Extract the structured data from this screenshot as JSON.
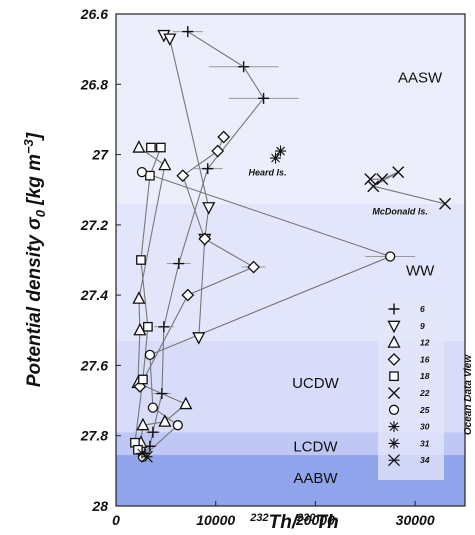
{
  "chart_data": {
    "type": "scatter",
    "xlabel": "232Th/230Th",
    "ylabel": "Potential density σ0 [kg m−3]",
    "xlim": [
      0,
      35000
    ],
    "ylim": [
      26.6,
      28.0
    ],
    "y_inverted": true,
    "x_ticks": [
      "0",
      "10000",
      "20000",
      "30000"
    ],
    "x_tick_values": [
      0,
      10000,
      20000,
      30000
    ],
    "y_ticks": [
      "26.6",
      "26.8",
      "27",
      "27.2",
      "27.4",
      "27.6",
      "27.8",
      "28"
    ],
    "y_tick_values": [
      26.6,
      26.8,
      27.0,
      27.2,
      27.4,
      27.6,
      27.8,
      28.0
    ],
    "water_masses": [
      {
        "name": "AASW",
        "from": 26.6,
        "to": 27.14,
        "color": "#eceefb",
        "label_x": 30500,
        "label_y": 26.78
      },
      {
        "name": "WW",
        "from": 27.14,
        "to": 27.53,
        "color": "#e3e6fb",
        "label_x": 30500,
        "label_y": 27.33
      },
      {
        "name": "UCDW",
        "from": 27.53,
        "to": 27.79,
        "color": "#d8dcf9",
        "label_x": 20000,
        "label_y": 27.65
      },
      {
        "name": "LCDW",
        "from": 27.79,
        "to": 27.855,
        "color": "#bfc8f5",
        "label_x": 20000,
        "label_y": 27.83
      },
      {
        "name": "AABW",
        "from": 27.855,
        "to": 28.0,
        "color": "#8fa4ea",
        "label_x": 20000,
        "label_y": 27.92
      }
    ],
    "annotations": [
      {
        "text": "Heard Is.",
        "x": 15200,
        "y": 27.06
      },
      {
        "text": "McDonald Is.",
        "x": 28500,
        "y": 27.17
      }
    ],
    "legend_position": "bottom-right",
    "series": [
      {
        "name": "6",
        "marker": "plus",
        "points": [
          [
            7200,
            26.65,
            1500
          ],
          [
            12800,
            26.75,
            3500
          ],
          [
            14800,
            26.84,
            3500
          ],
          [
            9200,
            27.04,
            1500
          ],
          [
            6300,
            27.31,
            1200
          ],
          [
            4800,
            27.49,
            1000
          ],
          [
            4600,
            27.68,
            900
          ],
          [
            3700,
            27.79,
            700
          ],
          [
            3400,
            27.83,
            700
          ],
          [
            2900,
            27.85,
            600
          ]
        ]
      },
      {
        "name": "9",
        "marker": "triangle-down",
        "points": [
          [
            4800,
            26.66,
            0
          ],
          [
            5400,
            26.67,
            0
          ],
          [
            9300,
            27.15,
            0
          ],
          [
            8900,
            27.24,
            0
          ],
          [
            8300,
            27.52,
            0
          ]
        ]
      },
      {
        "name": "12",
        "marker": "triangle-up",
        "points": [
          [
            2300,
            26.98,
            0
          ],
          [
            4900,
            27.03,
            0
          ],
          [
            2300,
            27.41,
            0
          ],
          [
            2400,
            27.5,
            0
          ],
          [
            2200,
            27.65,
            0
          ],
          [
            7000,
            27.71,
            0
          ],
          [
            4900,
            27.76,
            0
          ],
          [
            2700,
            27.77,
            0
          ],
          [
            2500,
            27.82,
            0
          ]
        ]
      },
      {
        "name": "16",
        "marker": "diamond",
        "points": [
          [
            10800,
            26.95,
            0
          ],
          [
            10200,
            26.99,
            0
          ],
          [
            6700,
            27.06,
            0
          ],
          [
            8900,
            27.24,
            0
          ],
          [
            13800,
            27.32,
            1200
          ],
          [
            7200,
            27.4,
            0
          ],
          [
            2400,
            27.66,
            0
          ]
        ]
      },
      {
        "name": "18",
        "marker": "square",
        "points": [
          [
            3500,
            26.98,
            0
          ],
          [
            4500,
            26.98,
            0
          ],
          [
            3400,
            27.06,
            0
          ],
          [
            2500,
            27.3,
            0
          ],
          [
            3200,
            27.49,
            0
          ],
          [
            2700,
            27.64,
            0
          ],
          [
            1900,
            27.82,
            0
          ],
          [
            2200,
            27.84,
            0
          ]
        ]
      },
      {
        "name": "22",
        "marker": "cross",
        "points": [
          [
            25500,
            27.07,
            0
          ],
          [
            26700,
            27.07,
            0
          ],
          [
            28300,
            27.05,
            0
          ],
          [
            25800,
            27.09,
            0
          ],
          [
            33000,
            27.14,
            0
          ]
        ]
      },
      {
        "name": "25",
        "marker": "circle",
        "points": [
          [
            2600,
            27.05,
            0
          ],
          [
            27500,
            27.29,
            2500
          ],
          [
            3400,
            27.57,
            0
          ],
          [
            3700,
            27.72,
            0
          ],
          [
            6200,
            27.77,
            0
          ],
          [
            2700,
            27.86,
            0
          ]
        ]
      },
      {
        "name": "30",
        "marker": "star",
        "points": [
          [
            16500,
            26.99,
            0
          ],
          [
            16000,
            27.01,
            0
          ]
        ]
      },
      {
        "name": "31",
        "marker": "star",
        "points": [
          [
            2600,
            27.85,
            0
          ]
        ]
      },
      {
        "name": "34",
        "marker": "star-cross",
        "points": [
          [
            3100,
            27.86,
            0
          ]
        ]
      }
    ]
  },
  "watermark": "Ocean Data View"
}
